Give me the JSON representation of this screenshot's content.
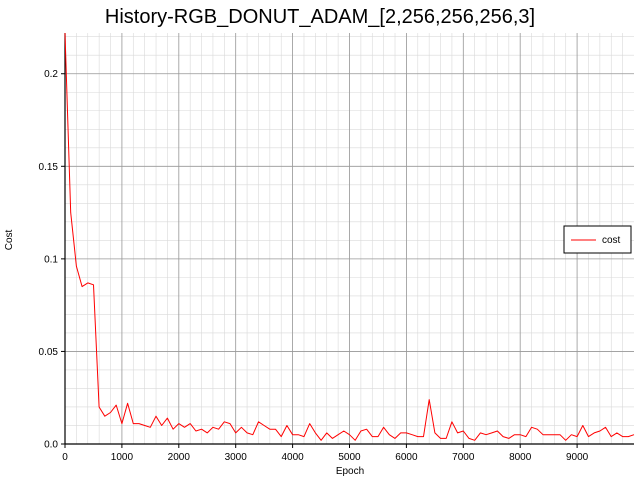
{
  "chart_data": {
    "type": "line",
    "title": "History-RGB_DONUT_ADAM_[2,256,256,256,3]",
    "xlabel": "Epoch",
    "ylabel": "Cost",
    "xlim": [
      0,
      10000
    ],
    "ylim": [
      0,
      0.222
    ],
    "xticks": [
      0,
      1000,
      2000,
      3000,
      4000,
      5000,
      6000,
      7000,
      8000,
      9000
    ],
    "xtick_labels": [
      "0",
      "1000",
      "2000",
      "3000",
      "4000",
      "5000",
      "6000",
      "7000",
      "8000",
      "9000"
    ],
    "yticks": [
      0,
      0.05,
      0.1,
      0.15,
      0.2
    ],
    "ytick_labels": [
      "0.0",
      "0.05",
      "0.1",
      "0.15",
      "0.2"
    ],
    "grid": "major and minor",
    "legend": {
      "position": "right",
      "entries": [
        "cost"
      ]
    },
    "series": [
      {
        "name": "cost",
        "color": "#ff0000",
        "x": [
          0,
          100,
          200,
          300,
          400,
          500,
          600,
          700,
          800,
          900,
          1000,
          1100,
          1200,
          1300,
          1400,
          1500,
          1600,
          1700,
          1800,
          1900,
          2000,
          2100,
          2200,
          2300,
          2400,
          2500,
          2600,
          2700,
          2800,
          2900,
          3000,
          3100,
          3200,
          3300,
          3400,
          3500,
          3600,
          3700,
          3800,
          3900,
          4000,
          4100,
          4200,
          4300,
          4400,
          4500,
          4600,
          4700,
          4800,
          4900,
          5000,
          5100,
          5200,
          5300,
          5400,
          5500,
          5600,
          5700,
          5800,
          5900,
          6000,
          6100,
          6200,
          6300,
          6400,
          6500,
          6600,
          6700,
          6800,
          6900,
          7000,
          7100,
          7200,
          7300,
          7400,
          7500,
          7600,
          7700,
          7800,
          7900,
          8000,
          8100,
          8200,
          8300,
          8400,
          8500,
          8600,
          8700,
          8800,
          8900,
          9000,
          9100,
          9200,
          9300,
          9400,
          9500,
          9600,
          9700,
          9800,
          9900,
          10000
        ],
        "values": [
          0.222,
          0.125,
          0.096,
          0.085,
          0.087,
          0.086,
          0.02,
          0.015,
          0.017,
          0.021,
          0.011,
          0.022,
          0.011,
          0.011,
          0.01,
          0.009,
          0.015,
          0.01,
          0.014,
          0.008,
          0.011,
          0.009,
          0.011,
          0.007,
          0.008,
          0.006,
          0.009,
          0.008,
          0.012,
          0.011,
          0.006,
          0.009,
          0.006,
          0.005,
          0.012,
          0.01,
          0.008,
          0.008,
          0.004,
          0.01,
          0.005,
          0.005,
          0.004,
          0.011,
          0.006,
          0.002,
          0.006,
          0.003,
          0.005,
          0.007,
          0.005,
          0.002,
          0.007,
          0.008,
          0.004,
          0.004,
          0.009,
          0.005,
          0.003,
          0.006,
          0.006,
          0.005,
          0.004,
          0.004,
          0.024,
          0.006,
          0.003,
          0.003,
          0.012,
          0.006,
          0.007,
          0.003,
          0.002,
          0.006,
          0.005,
          0.006,
          0.007,
          0.004,
          0.003,
          0.005,
          0.005,
          0.004,
          0.009,
          0.008,
          0.005,
          0.005,
          0.005,
          0.005,
          0.002,
          0.005,
          0.004,
          0.01,
          0.004,
          0.006,
          0.007,
          0.009,
          0.004,
          0.006,
          0.004,
          0.004,
          0.005
        ]
      }
    ]
  }
}
